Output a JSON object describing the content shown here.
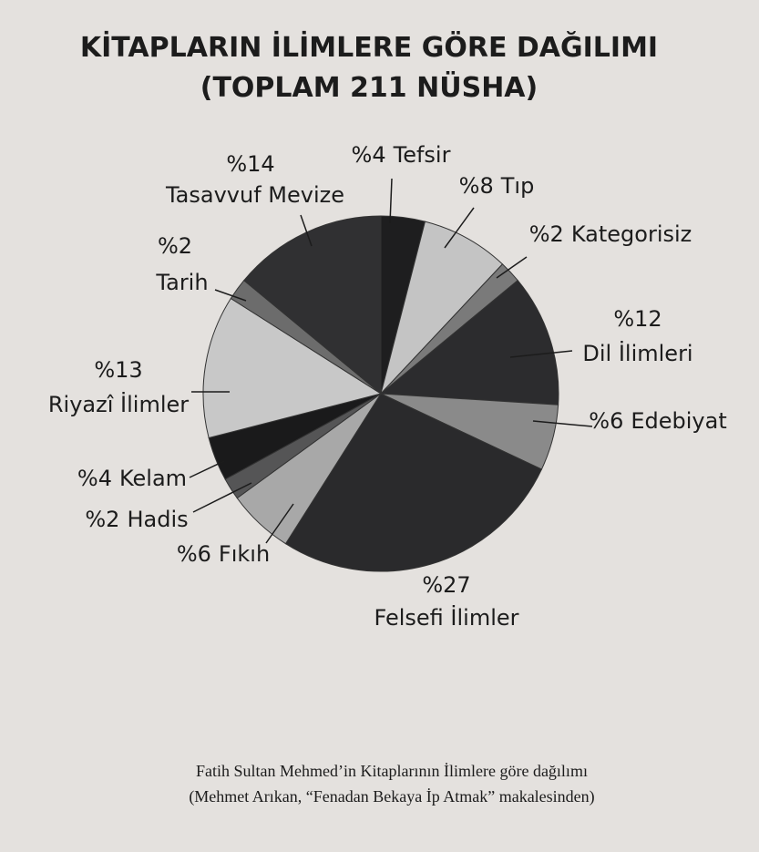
{
  "chart_data": {
    "type": "pie",
    "title": [
      "KİTAPLARIN İLİMLERE GÖRE DAĞILIMI",
      "(TOPLAM 211 NÜSHA)"
    ],
    "categories": [
      "Tefsir",
      "Tıp",
      "Kategorisiz",
      "Dil İlimleri",
      "Edebiyat",
      "Felsefi İlimler",
      "Fıkıh",
      "Hadis",
      "Kelam",
      "Riyazî İlimler",
      "Tarih",
      "Tasavvuf Mevize"
    ],
    "values": [
      4,
      8,
      2,
      12,
      6,
      27,
      6,
      2,
      4,
      13,
      2,
      14
    ],
    "value_labels": [
      "%4",
      "%8",
      "%2",
      "%12",
      "%6",
      "%27",
      "%6",
      "%2",
      "%4",
      "%13",
      "%2",
      "%14"
    ],
    "colors": [
      "#1e1e1f",
      "#c4c4c4",
      "#7a7a7a",
      "#2c2c2e",
      "#8a8a8a",
      "#2a2a2c",
      "#a8a8a8",
      "#555556",
      "#1a1a1b",
      "#c8c8c8",
      "#6c6c6c",
      "#303032"
    ],
    "caption": [
      "Fatih Sultan Mehmed’in Kitaplarının İlimlere göre dağılımı",
      "(Mehmet Arıkan, “Fenadan Bekaya İp Atmak” makalesinden)"
    ]
  }
}
